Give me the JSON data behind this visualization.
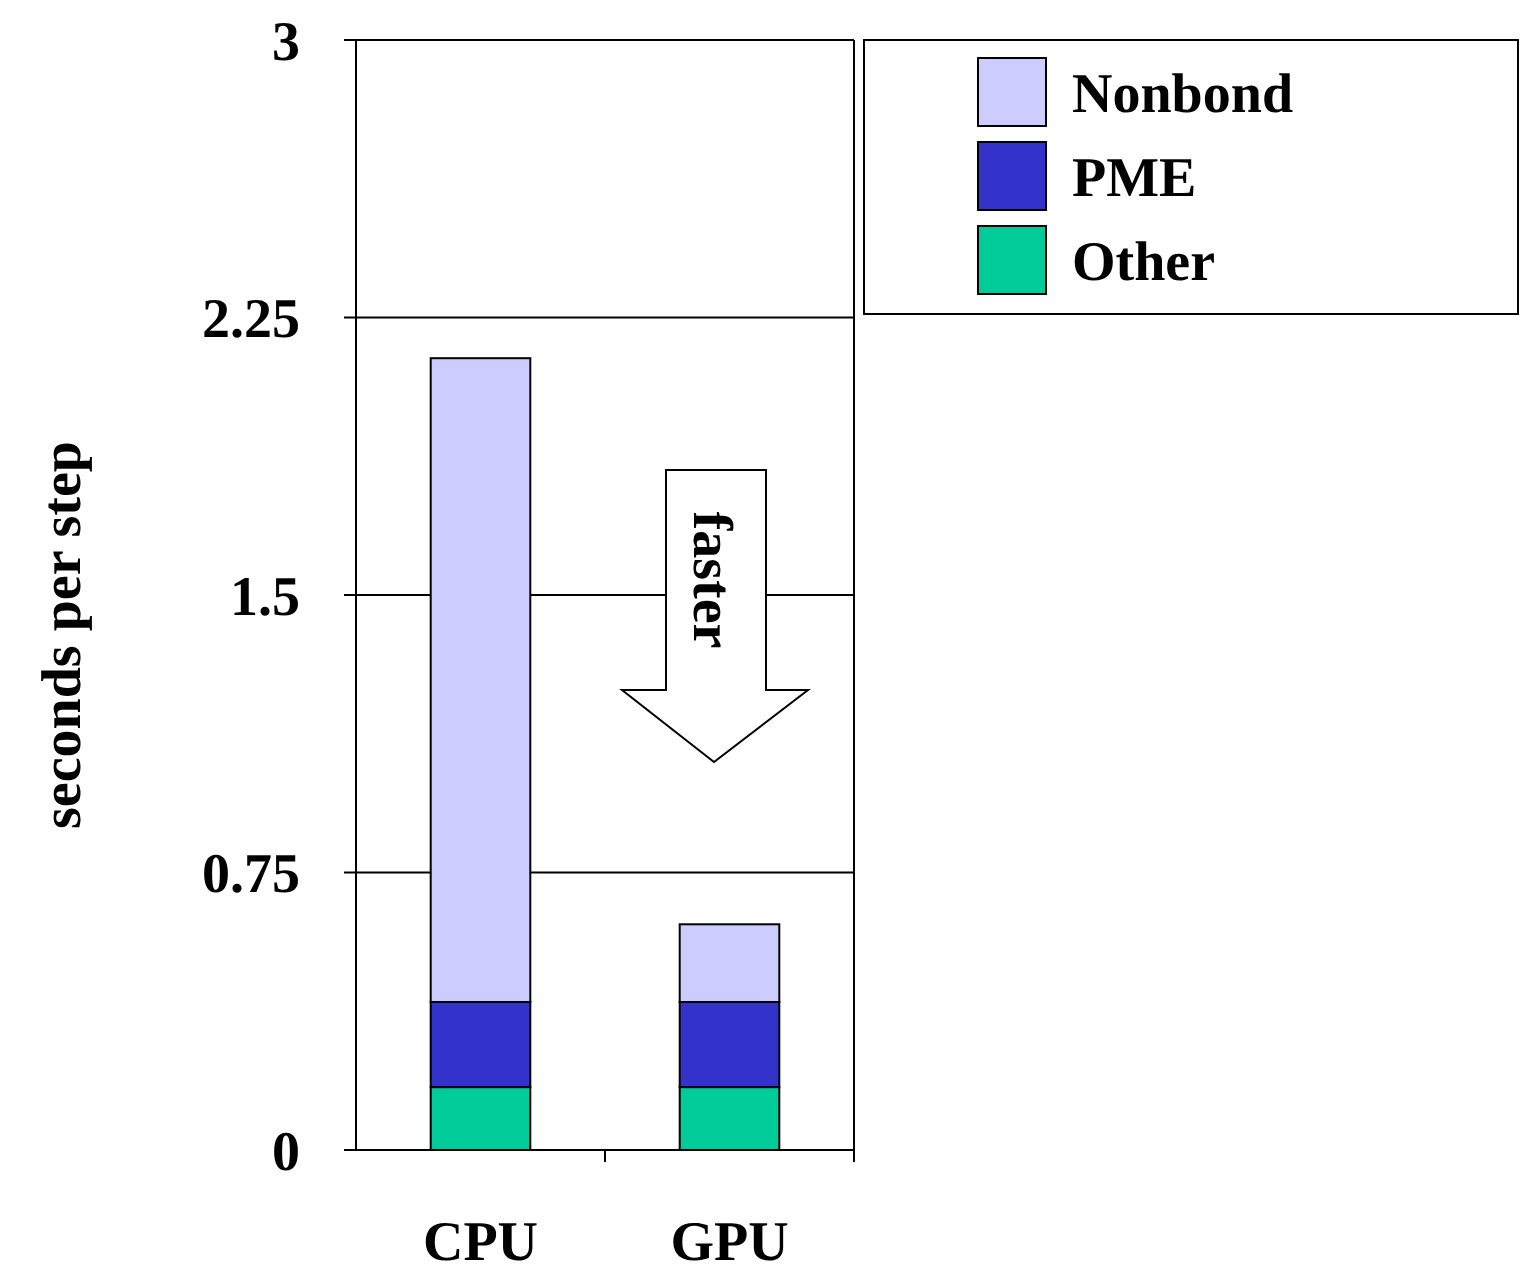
{
  "chart_data": {
    "type": "bar",
    "stacked": true,
    "ylabel": "seconds per step",
    "categories": [
      "CPU",
      "GPU"
    ],
    "series": [
      {
        "name": "Other",
        "color": "#00cc99",
        "values": [
          0.17,
          0.17
        ]
      },
      {
        "name": "PME",
        "color": "#3333cc",
        "values": [
          0.23,
          0.23
        ]
      },
      {
        "name": "Nonbond",
        "color": "#ccccff",
        "values": [
          1.74,
          0.21
        ]
      }
    ],
    "ylim": [
      0,
      3
    ],
    "yticks": [
      0,
      0.75,
      1.5,
      2.25,
      3
    ],
    "grid": "y",
    "legend": "top right",
    "annotations": [
      "faster"
    ]
  }
}
